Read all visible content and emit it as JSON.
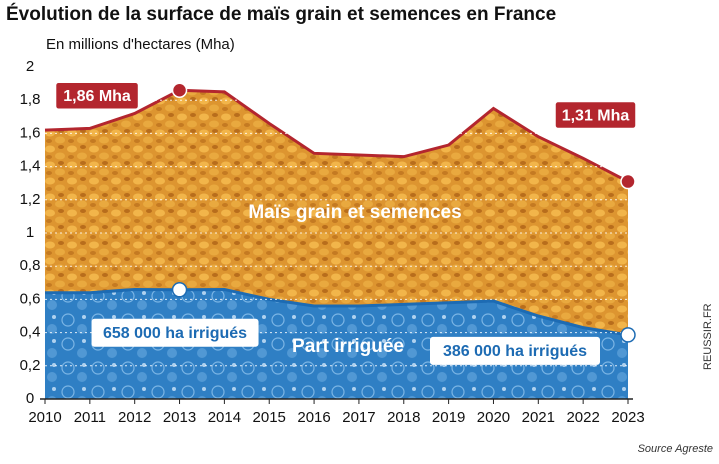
{
  "chart_data": {
    "type": "area",
    "title": "Évolution de la surface de maïs grain et semences en France",
    "subtitle": "En millions d'hectares (Mha)",
    "source": "Source Agreste",
    "credit": "REUSSIR.FR",
    "x": [
      2010,
      2011,
      2012,
      2013,
      2014,
      2015,
      2016,
      2017,
      2018,
      2019,
      2020,
      2021,
      2022,
      2023
    ],
    "xlim": [
      2010,
      2023
    ],
    "xticks": [
      2010,
      2011,
      2012,
      2013,
      2014,
      2015,
      2016,
      2017,
      2018,
      2019,
      2020,
      2021,
      2022,
      2023
    ],
    "ylim": [
      0,
      2
    ],
    "yticks": [
      0,
      {
        "value": 0.2,
        "label": "0,2"
      },
      {
        "value": 0.4,
        "label": "0,4"
      },
      {
        "value": 0.6,
        "label": "0,6"
      },
      {
        "value": 0.8,
        "label": "0,8"
      },
      1,
      {
        "value": 1.2,
        "label": "1,2"
      },
      {
        "value": 1.4,
        "label": "1,4"
      },
      {
        "value": 1.6,
        "label": "1,6"
      },
      {
        "value": 1.8,
        "label": "1,8"
      },
      2
    ],
    "grid": true,
    "series": [
      {
        "name": "Maïs grain et semences",
        "color": "#b3262e",
        "fill": "#dd9530",
        "values": [
          1.62,
          1.63,
          1.72,
          1.86,
          1.85,
          1.66,
          1.48,
          1.47,
          1.46,
          1.53,
          1.75,
          1.58,
          1.45,
          1.31
        ],
        "value_labels": [
          null,
          null,
          null,
          "1,86 Mha",
          null,
          null,
          null,
          null,
          null,
          null,
          null,
          null,
          null,
          "1,31 Mha"
        ]
      },
      {
        "name": "Part irriguée",
        "color": "#1d6bb3",
        "fill": "#3f8fd0",
        "values": [
          0.64,
          0.64,
          0.66,
          0.658,
          0.66,
          0.6,
          0.56,
          0.56,
          0.57,
          0.58,
          0.59,
          0.5,
          0.43,
          0.386
        ],
        "value_labels": [
          null,
          null,
          null,
          "658 000 ha irrigués",
          null,
          null,
          null,
          null,
          null,
          null,
          null,
          null,
          null,
          "386 000 ha irrigués"
        ]
      }
    ]
  }
}
